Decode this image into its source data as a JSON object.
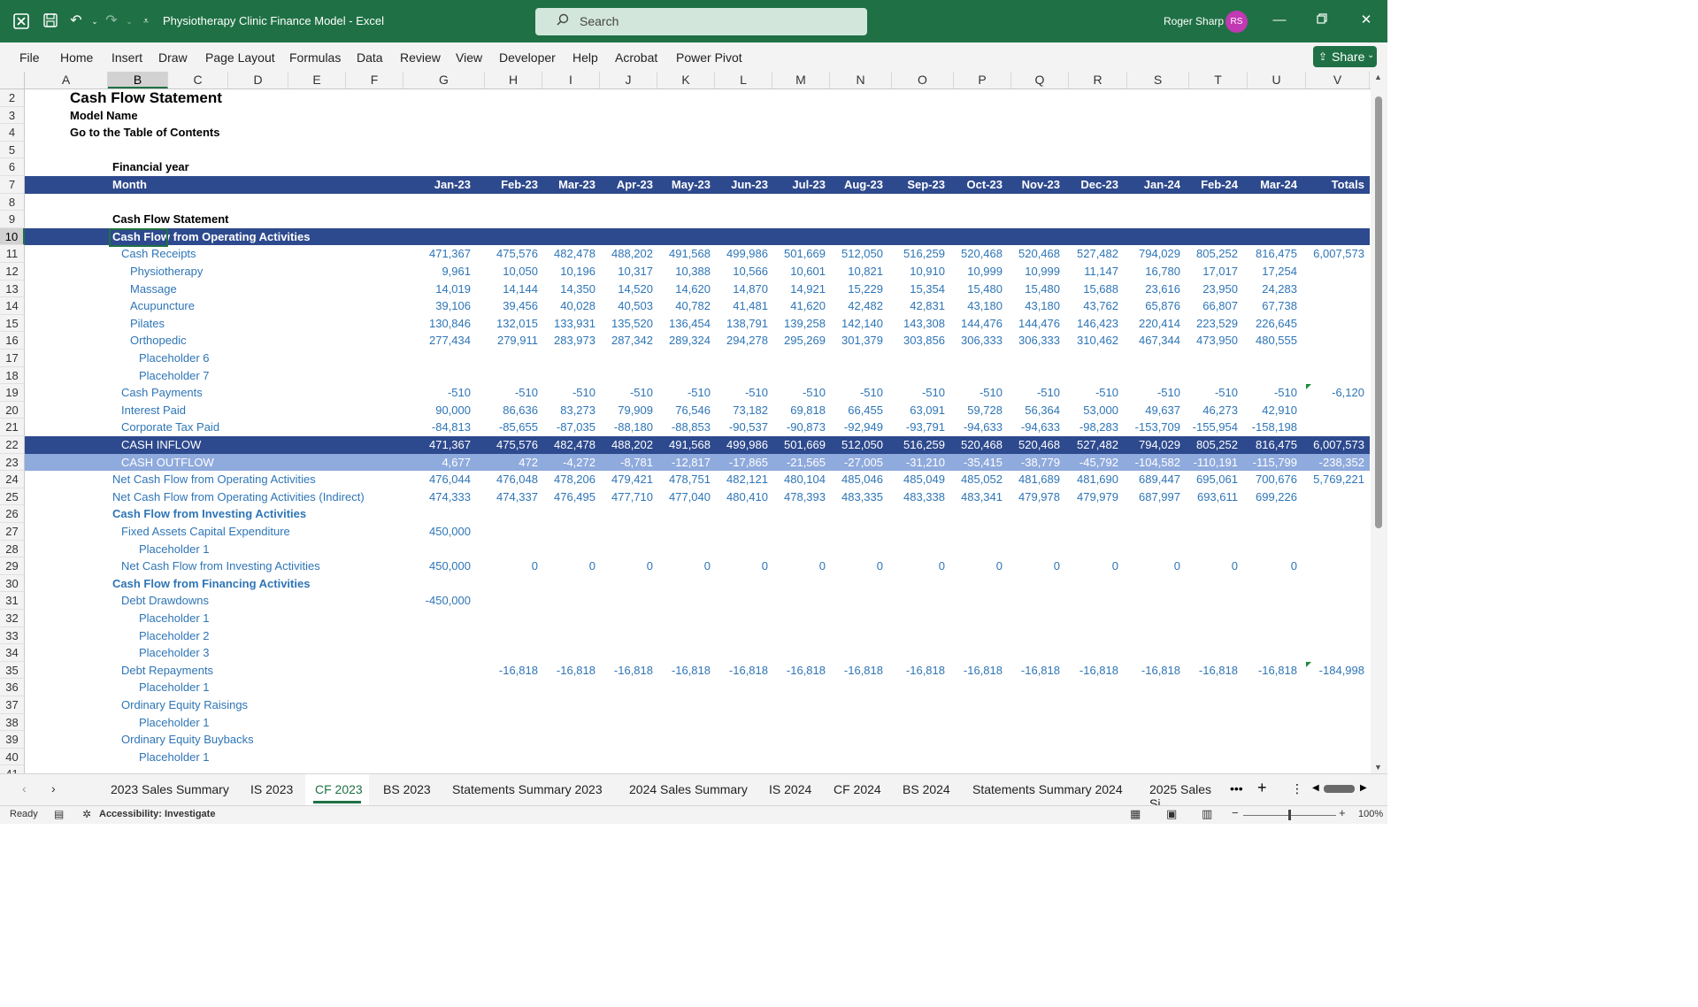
{
  "window": {
    "doc_title": "Physiotherapy Clinic Finance Model  -  Excel",
    "search_placeholder": "Search",
    "user_name": "Roger Sharp",
    "user_initials": "RS"
  },
  "menu": [
    "File",
    "Home",
    "Insert",
    "Draw",
    "Page Layout",
    "Formulas",
    "Data",
    "Review",
    "View",
    "Developer",
    "Help",
    "Acrobat",
    "Power Pivot"
  ],
  "share_label": "Share",
  "columns": [
    "A",
    "B",
    "C",
    "D",
    "E",
    "F",
    "G",
    "H",
    "I",
    "J",
    "K",
    "L",
    "M",
    "N",
    "O",
    "P",
    "Q",
    "R",
    "S",
    "T",
    "U",
    "V"
  ],
  "sheet": {
    "title": "Cash Flow Statement",
    "model_name": "Model Name",
    "toc_link": "Go to the Table of Contents",
    "fy_label": "Financial year",
    "month_label": "Month",
    "months": [
      "Jan-23",
      "Feb-23",
      "Mar-23",
      "Apr-23",
      "May-23",
      "Jun-23",
      "Jul-23",
      "Aug-23",
      "Sep-23",
      "Oct-23",
      "Nov-23",
      "Dec-23",
      "Jan-24",
      "Feb-24",
      "Mar-24",
      "Totals"
    ],
    "section_label": "Cash Flow Statement",
    "rows": [
      {
        "r": "10",
        "label": "Cash Flow from Operating Activities",
        "style": "dark",
        "indent": 0,
        "values": []
      },
      {
        "r": "11",
        "label": "Cash Receipts",
        "style": "blue",
        "indent": 1,
        "values": [
          "471,367",
          "475,576",
          "482,478",
          "488,202",
          "491,568",
          "499,986",
          "501,669",
          "512,050",
          "516,259",
          "520,468",
          "520,468",
          "527,482",
          "794,029",
          "805,252",
          "816,475",
          "6,007,573"
        ]
      },
      {
        "r": "12",
        "label": "Physiotherapy",
        "style": "blue",
        "indent": 2,
        "values": [
          "9,961",
          "10,050",
          "10,196",
          "10,317",
          "10,388",
          "10,566",
          "10,601",
          "10,821",
          "10,910",
          "10,999",
          "10,999",
          "11,147",
          "16,780",
          "17,017",
          "17,254",
          ""
        ]
      },
      {
        "r": "13",
        "label": "Massage",
        "style": "blue",
        "indent": 2,
        "values": [
          "14,019",
          "14,144",
          "14,350",
          "14,520",
          "14,620",
          "14,870",
          "14,921",
          "15,229",
          "15,354",
          "15,480",
          "15,480",
          "15,688",
          "23,616",
          "23,950",
          "24,283",
          ""
        ]
      },
      {
        "r": "14",
        "label": "Acupuncture",
        "style": "blue",
        "indent": 2,
        "values": [
          "39,106",
          "39,456",
          "40,028",
          "40,503",
          "40,782",
          "41,481",
          "41,620",
          "42,482",
          "42,831",
          "43,180",
          "43,180",
          "43,762",
          "65,876",
          "66,807",
          "67,738",
          ""
        ]
      },
      {
        "r": "15",
        "label": "Pilates",
        "style": "blue",
        "indent": 2,
        "values": [
          "130,846",
          "132,015",
          "133,931",
          "135,520",
          "136,454",
          "138,791",
          "139,258",
          "142,140",
          "143,308",
          "144,476",
          "144,476",
          "146,423",
          "220,414",
          "223,529",
          "226,645",
          ""
        ]
      },
      {
        "r": "16",
        "label": "Orthopedic",
        "style": "blue",
        "indent": 2,
        "values": [
          "277,434",
          "279,911",
          "283,973",
          "287,342",
          "289,324",
          "294,278",
          "295,269",
          "301,379",
          "303,856",
          "306,333",
          "306,333",
          "310,462",
          "467,344",
          "473,950",
          "480,555",
          ""
        ]
      },
      {
        "r": "17",
        "label": "Placeholder 6",
        "style": "blue",
        "indent": 3,
        "values": []
      },
      {
        "r": "18",
        "label": "Placeholder 7",
        "style": "blue",
        "indent": 3,
        "values": []
      },
      {
        "r": "19",
        "label": "Cash Payments",
        "style": "blue",
        "indent": 1,
        "values": [
          "-510",
          "-510",
          "-510",
          "-510",
          "-510",
          "-510",
          "-510",
          "-510",
          "-510",
          "-510",
          "-510",
          "-510",
          "-510",
          "-510",
          "-510",
          "-6,120"
        ]
      },
      {
        "r": "20",
        "label": "Interest Paid",
        "style": "blue",
        "indent": 1,
        "values": [
          "90,000",
          "86,636",
          "83,273",
          "79,909",
          "76,546",
          "73,182",
          "69,818",
          "66,455",
          "63,091",
          "59,728",
          "56,364",
          "53,000",
          "49,637",
          "46,273",
          "42,910",
          ""
        ]
      },
      {
        "r": "21",
        "label": "Corporate Tax Paid",
        "style": "blue",
        "indent": 1,
        "values": [
          "-84,813",
          "-85,655",
          "-87,035",
          "-88,180",
          "-88,853",
          "-90,537",
          "-90,873",
          "-92,949",
          "-93,791",
          "-94,633",
          "-94,633",
          "-98,283",
          "-153,709",
          "-155,954",
          "-158,198",
          ""
        ]
      },
      {
        "r": "22",
        "label": "CASH INFLOW",
        "style": "dark-plain",
        "indent": 1,
        "values": [
          "471,367",
          "475,576",
          "482,478",
          "488,202",
          "491,568",
          "499,986",
          "501,669",
          "512,050",
          "516,259",
          "520,468",
          "520,468",
          "527,482",
          "794,029",
          "805,252",
          "816,475",
          "6,007,573"
        ]
      },
      {
        "r": "23",
        "label": "CASH OUTFLOW",
        "style": "light",
        "indent": 1,
        "values": [
          "4,677",
          "472",
          "-4,272",
          "-8,781",
          "-12,817",
          "-17,865",
          "-21,565",
          "-27,005",
          "-31,210",
          "-35,415",
          "-38,779",
          "-45,792",
          "-104,582",
          "-110,191",
          "-115,799",
          "-238,352"
        ]
      },
      {
        "r": "24",
        "label": "Net Cash Flow from Operating Activities",
        "style": "blue",
        "indent": 0,
        "values": [
          "476,044",
          "476,048",
          "478,206",
          "479,421",
          "478,751",
          "482,121",
          "480,104",
          "485,046",
          "485,049",
          "485,052",
          "481,689",
          "481,690",
          "689,447",
          "695,061",
          "700,676",
          "5,769,221"
        ]
      },
      {
        "r": "25",
        "label": "Net Cash Flow from Operating Activities (Indirect)",
        "style": "blue",
        "indent": 0,
        "values": [
          "474,333",
          "474,337",
          "476,495",
          "477,710",
          "477,040",
          "480,410",
          "478,393",
          "483,335",
          "483,338",
          "483,341",
          "479,978",
          "479,979",
          "687,997",
          "693,611",
          "699,226",
          ""
        ]
      },
      {
        "r": "26",
        "label": "Cash Flow from Investing Activities",
        "style": "blue-bold",
        "indent": 0,
        "values": []
      },
      {
        "r": "27",
        "label": "Fixed Assets Capital Expenditure",
        "style": "blue",
        "indent": 1,
        "values": [
          "450,000"
        ]
      },
      {
        "r": "28",
        "label": "Placeholder 1",
        "style": "blue",
        "indent": 3,
        "values": []
      },
      {
        "r": "29",
        "label": "Net Cash Flow from Investing Activities",
        "style": "blue",
        "indent": 1,
        "values": [
          "450,000",
          "0",
          "0",
          "0",
          "0",
          "0",
          "0",
          "0",
          "0",
          "0",
          "0",
          "0",
          "0",
          "0",
          "0",
          ""
        ]
      },
      {
        "r": "30",
        "label": "Cash Flow from Financing Activities",
        "style": "blue-bold",
        "indent": 0,
        "values": []
      },
      {
        "r": "31",
        "label": "Debt Drawdowns",
        "style": "blue",
        "indent": 1,
        "values": [
          "-450,000"
        ]
      },
      {
        "r": "32",
        "label": "Placeholder 1",
        "style": "blue",
        "indent": 3,
        "values": []
      },
      {
        "r": "33",
        "label": "Placeholder 2",
        "style": "blue",
        "indent": 3,
        "values": []
      },
      {
        "r": "34",
        "label": "Placeholder 3",
        "style": "blue",
        "indent": 3,
        "values": []
      },
      {
        "r": "35",
        "label": "Debt Repayments",
        "style": "blue",
        "indent": 1,
        "values": [
          "",
          "-16,818",
          "-16,818",
          "-16,818",
          "-16,818",
          "-16,818",
          "-16,818",
          "-16,818",
          "-16,818",
          "-16,818",
          "-16,818",
          "-16,818",
          "-16,818",
          "-16,818",
          "-16,818",
          "-184,998"
        ]
      },
      {
        "r": "36",
        "label": "Placeholder 1",
        "style": "blue",
        "indent": 3,
        "values": []
      },
      {
        "r": "37",
        "label": "Ordinary Equity Raisings",
        "style": "blue",
        "indent": 1,
        "values": []
      },
      {
        "r": "38",
        "label": "Placeholder 1",
        "style": "blue",
        "indent": 3,
        "values": []
      },
      {
        "r": "39",
        "label": "Ordinary Equity Buybacks",
        "style": "blue",
        "indent": 1,
        "values": []
      },
      {
        "r": "40",
        "label": "Placeholder 1",
        "style": "blue",
        "indent": 3,
        "values": []
      }
    ]
  },
  "sheet_tabs": [
    "2023 Sales Summary",
    "IS 2023",
    "CF 2023",
    "BS 2023",
    "Statements Summary 2023",
    "2024 Sales Summary",
    "IS 2024",
    "CF 2024",
    "BS 2024",
    "Statements Summary 2024",
    "2025 Sales Si"
  ],
  "active_tab": "CF 2023",
  "status": {
    "ready": "Ready",
    "accessibility": "Accessibility: Investigate",
    "zoom": "100%"
  }
}
